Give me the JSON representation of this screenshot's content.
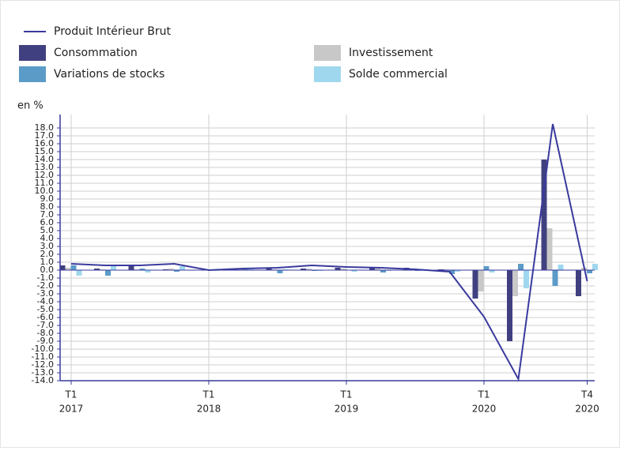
{
  "chart_data": {
    "type": "bar",
    "y_label": "en %",
    "categories": [
      [
        "T1",
        "2017"
      ],
      null,
      null,
      null,
      [
        "T1",
        "2018"
      ],
      null,
      null,
      null,
      [
        "T1",
        "2019"
      ],
      null,
      null,
      null,
      [
        "T1",
        "2020"
      ],
      null,
      null,
      [
        "T4",
        "2020"
      ]
    ],
    "series": [
      {
        "name": "Produit Intérieur Brut",
        "type": "line",
        "color": "#3a3a9e",
        "values": [
          0.8,
          0.6,
          0.6,
          0.8,
          0.0,
          0.2,
          0.3,
          0.6,
          0.4,
          0.3,
          0.1,
          -0.2,
          -5.9,
          -13.8,
          18.5,
          -1.4
        ]
      },
      {
        "name": "Consommation",
        "color": "#404080",
        "values": [
          0.6,
          0.2,
          0.5,
          0.1,
          0.0,
          0.1,
          0.2,
          0.2,
          0.3,
          0.4,
          0.3,
          0.1,
          -3.6,
          -9.0,
          14.0,
          -3.3
        ]
      },
      {
        "name": "Investissement",
        "color": "#c8c8c8",
        "values": [
          0.3,
          0.1,
          0.1,
          0.2,
          0.1,
          0.1,
          0.1,
          0.2,
          0.2,
          0.2,
          0.2,
          0.1,
          -2.7,
          -3.3,
          5.3,
          0.3
        ]
      },
      {
        "name": "Variations de stocks",
        "color": "#5b9bc8",
        "values": [
          0.6,
          -0.7,
          0.2,
          -0.2,
          0.1,
          0.1,
          -0.4,
          -0.1,
          0.0,
          -0.3,
          -0.1,
          -0.5,
          0.5,
          0.8,
          -2.0,
          -0.4
        ]
      },
      {
        "name": "Solde commercial",
        "color": "#9fd8ee",
        "values": [
          -0.7,
          0.7,
          -0.3,
          0.5,
          -0.1,
          0.1,
          0.1,
          -0.1,
          -0.2,
          -0.1,
          -0.1,
          -0.2,
          -0.3,
          -2.3,
          0.7,
          0.8
        ]
      }
    ],
    "ylim": [
      -14,
      19.7
    ],
    "yticks": [
      {
        "value": -14,
        "label": "-14.0"
      },
      {
        "value": -13,
        "label": "-13.0"
      },
      {
        "value": -12,
        "label": "-12.0"
      },
      {
        "value": -11,
        "label": "-11.0"
      },
      {
        "value": -10,
        "label": "-10.0"
      },
      {
        "value": -9,
        "label": "-9.0"
      },
      {
        "value": -8,
        "label": "-8.0"
      },
      {
        "value": -7,
        "label": "-7.0"
      },
      {
        "value": -6,
        "label": "-6.0"
      },
      {
        "value": -5,
        "label": "-5.0"
      },
      {
        "value": -4,
        "label": "-4.0"
      },
      {
        "value": -3,
        "label": "-3.0"
      },
      {
        "value": -2,
        "label": "-2.0"
      },
      {
        "value": -1,
        "label": "-1.0"
      },
      {
        "value": 0,
        "label": "0.0"
      },
      {
        "value": 1,
        "label": "1.0"
      },
      {
        "value": 2,
        "label": "2.0"
      },
      {
        "value": 3,
        "label": "3.0"
      },
      {
        "value": 4,
        "label": "4.0"
      },
      {
        "value": 5,
        "label": "5.0"
      },
      {
        "value": 6,
        "label": "6.0"
      },
      {
        "value": 7,
        "label": "7.0"
      },
      {
        "value": 8,
        "label": "8.0"
      },
      {
        "value": 9,
        "label": "9.0"
      },
      {
        "value": 10,
        "label": "10.0"
      },
      {
        "value": 11,
        "label": "11.0"
      },
      {
        "value": 12,
        "label": "12.0"
      },
      {
        "value": 13,
        "label": "13.0"
      },
      {
        "value": 14,
        "label": "14.0"
      },
      {
        "value": 15,
        "label": "15.0"
      },
      {
        "value": 16,
        "label": "16.0"
      },
      {
        "value": 17,
        "label": "17.0"
      },
      {
        "value": 18,
        "label": "18.0"
      }
    ],
    "grid": true
  }
}
